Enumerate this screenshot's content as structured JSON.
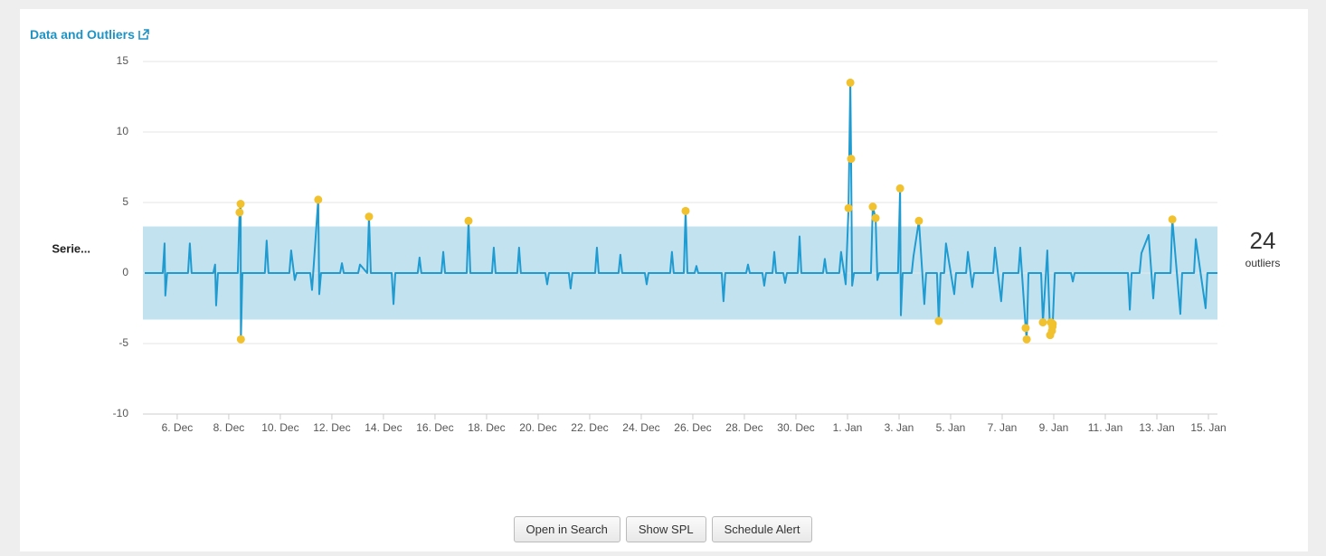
{
  "panel_title": "Data and Outliers",
  "chart_data": {
    "type": "line",
    "series_label": "Serie...",
    "xlim": [
      4.67,
      46.35
    ],
    "xticks": [
      {
        "value": 6,
        "label": "6. Dec"
      },
      {
        "value": 8,
        "label": "8. Dec"
      },
      {
        "value": 10,
        "label": "10. Dec"
      },
      {
        "value": 12,
        "label": "12. Dec"
      },
      {
        "value": 14,
        "label": "14. Dec"
      },
      {
        "value": 16,
        "label": "16. Dec"
      },
      {
        "value": 18,
        "label": "18. Dec"
      },
      {
        "value": 20,
        "label": "20. Dec"
      },
      {
        "value": 22,
        "label": "22. Dec"
      },
      {
        "value": 24,
        "label": "24. Dec"
      },
      {
        "value": 26,
        "label": "26. Dec"
      },
      {
        "value": 28,
        "label": "28. Dec"
      },
      {
        "value": 30,
        "label": "30. Dec"
      },
      {
        "value": 32,
        "label": "1. Jan"
      },
      {
        "value": 34,
        "label": "3. Jan"
      },
      {
        "value": 36,
        "label": "5. Jan"
      },
      {
        "value": 38,
        "label": "7. Jan"
      },
      {
        "value": 40,
        "label": "9. Jan"
      },
      {
        "value": 42,
        "label": "11. Jan"
      },
      {
        "value": 44,
        "label": "13. Jan"
      },
      {
        "value": 46,
        "label": "15. Jan"
      }
    ],
    "ylim": [
      -10,
      15
    ],
    "yticks": [
      15,
      10,
      5,
      0,
      -5,
      -10
    ],
    "grid": true,
    "band": {
      "lower": -3.3,
      "upper": 3.3,
      "color": "#c3e2f0"
    },
    "series": [
      {
        "color": "#1e9bd0",
        "x": [
          4.74,
          5.44,
          5.51,
          5.54,
          5.61,
          6.42,
          6.49,
          6.56,
          7.4,
          7.47,
          7.51,
          7.58,
          8.35,
          8.42,
          8.46,
          8.47,
          8.53,
          9.4,
          9.47,
          9.54,
          10.35,
          10.42,
          10.56,
          10.63,
          11.16,
          11.23,
          11.47,
          11.51,
          11.58,
          12.32,
          12.39,
          12.46,
          13.02,
          13.09,
          13.37,
          13.44,
          13.51,
          14.32,
          14.39,
          14.46,
          15.33,
          15.4,
          15.47,
          16.25,
          16.32,
          16.39,
          17.23,
          17.3,
          17.37,
          18.21,
          18.28,
          18.35,
          19.19,
          19.26,
          19.33,
          20.28,
          20.35,
          20.42,
          21.19,
          21.26,
          21.33,
          22.21,
          22.28,
          22.35,
          23.12,
          23.19,
          23.26,
          24.14,
          24.21,
          24.28,
          25.12,
          25.19,
          25.26,
          25.65,
          25.72,
          25.79,
          26.07,
          26.14,
          26.21,
          27.12,
          27.19,
          27.26,
          28.07,
          28.14,
          28.21,
          28.7,
          28.77,
          28.84,
          29.09,
          29.16,
          29.23,
          29.51,
          29.58,
          29.65,
          30.07,
          30.14,
          30.21,
          31.05,
          31.12,
          31.19,
          31.68,
          31.75,
          31.93,
          32.04,
          32.11,
          32.14,
          32.18,
          32.25,
          32.91,
          32.98,
          33.09,
          33.16,
          33.23,
          33.96,
          34.04,
          34.07,
          34.14,
          34.49,
          34.56,
          34.77,
          34.98,
          35.05,
          35.47,
          35.54,
          35.61,
          35.75,
          35.82,
          36.14,
          36.21,
          36.6,
          36.67,
          36.84,
          36.91,
          37.65,
          37.72,
          37.96,
          38.04,
          38.63,
          38.7,
          38.91,
          38.95,
          39.02,
          39.51,
          39.58,
          39.75,
          39.86,
          39.89,
          39.93,
          39.95,
          39.96,
          40.04,
          40.67,
          40.74,
          40.81,
          42.88,
          42.95,
          43.02,
          43.33,
          43.4,
          43.68,
          43.86,
          43.93,
          44.53,
          44.6,
          44.91,
          44.98,
          45.44,
          45.51,
          45.89,
          45.96,
          46.35
        ],
        "values": [
          0,
          0,
          2.1,
          -1.6,
          0,
          0,
          2.1,
          0,
          0,
          0.6,
          -2.3,
          0,
          0,
          4.3,
          4.9,
          -4.7,
          0,
          0,
          2.3,
          0,
          0,
          1.6,
          -0.5,
          0,
          0,
          -1.2,
          5.2,
          -1.5,
          0,
          0,
          0.7,
          0,
          0,
          0.6,
          0,
          4.0,
          0,
          0,
          -2.2,
          0,
          0,
          1.1,
          0,
          0,
          1.5,
          0,
          0,
          3.7,
          0,
          0,
          1.8,
          0,
          0,
          1.8,
          0,
          0,
          -0.8,
          0,
          0,
          -1.1,
          0,
          0,
          1.8,
          0,
          0,
          1.3,
          0,
          0,
          -0.8,
          0,
          0,
          1.5,
          0,
          0,
          4.4,
          0,
          0,
          0.5,
          0,
          0,
          -2.0,
          0,
          0,
          0.6,
          0,
          0,
          -0.9,
          0,
          0,
          1.5,
          0,
          0,
          -0.7,
          0,
          0,
          2.6,
          0,
          0,
          1.0,
          0,
          0,
          1.5,
          -0.8,
          4.6,
          13.5,
          8.1,
          -0.9,
          0,
          0,
          4.7,
          3.9,
          -0.5,
          0,
          0,
          6.0,
          -3.0,
          0,
          0,
          1.2,
          3.7,
          -2.2,
          0,
          0,
          -3.4,
          0,
          0,
          2.1,
          -1.5,
          0,
          0,
          1.5,
          -1.0,
          0,
          0,
          1.8,
          -2.0,
          0,
          0,
          1.8,
          -3.9,
          -4.7,
          0,
          0,
          -3.5,
          1.6,
          -4.4,
          -3.5,
          -4.1,
          -3.8,
          -3.6,
          0,
          0,
          -0.6,
          0,
          0,
          -2.6,
          0,
          0,
          1.4,
          2.7,
          -1.8,
          0,
          0,
          3.8,
          -2.9,
          0,
          0,
          2.4,
          -2.5,
          0,
          0
        ]
      },
      {
        "type": "scatter",
        "color": "#f2c12e",
        "x": [
          8.42,
          8.46,
          8.47,
          11.47,
          13.44,
          17.3,
          25.72,
          32.04,
          32.11,
          32.14,
          32.98,
          33.09,
          34.04,
          34.77,
          35.54,
          38.91,
          38.95,
          39.58,
          39.86,
          39.89,
          39.93,
          39.95,
          39.96,
          44.6
        ],
        "values": [
          4.3,
          4.9,
          -4.7,
          5.2,
          4.0,
          3.7,
          4.4,
          4.6,
          13.5,
          8.1,
          4.7,
          3.9,
          6.0,
          3.7,
          -3.4,
          -3.9,
          -4.7,
          -3.5,
          -4.4,
          -3.5,
          -4.1,
          -3.8,
          -3.6,
          3.8
        ]
      }
    ]
  },
  "outlier_count": 24,
  "outlier_label": "outliers",
  "buttons": [
    "Open in Search",
    "Show SPL",
    "Schedule Alert"
  ]
}
